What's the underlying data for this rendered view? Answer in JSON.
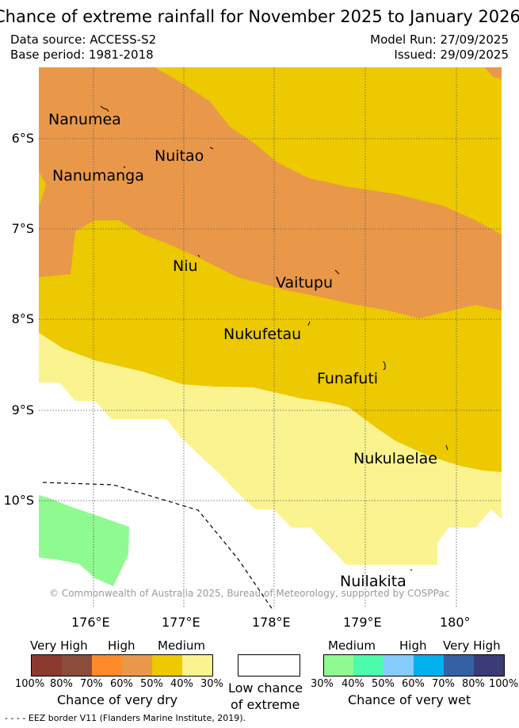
{
  "title": "Chance of extreme rainfall for November 2025 to January 2026",
  "meta": {
    "data_source": "Data source: ACCESS-S2",
    "base_period": "Base period: 1981-2018",
    "model_run": "Model Run: 27/09/2025",
    "issued": "Issued: 29/09/2025"
  },
  "axes": {
    "lat_ticks": [
      "6°S",
      "7°S",
      "8°S",
      "9°S",
      "10°S"
    ],
    "lon_ticks": [
      "176°E",
      "177°E",
      "178°E",
      "179°E",
      "180°"
    ]
  },
  "places": [
    "Nanumea",
    "Nuitao",
    "Nanumanga",
    "Niu",
    "Vaitupu",
    "Nukufetau",
    "Funafuti",
    "Nukulaelae",
    "Nuilakita"
  ],
  "copyright": "© Commonwealth of Australia 2025, Bureau of Meteorology, supported by COSPPac",
  "legend": {
    "dry_headers": [
      "Very High",
      "High",
      "Medium"
    ],
    "dry_pcts": [
      "100%",
      "80%",
      "70%",
      "60%",
      "50%",
      "40%",
      "30%"
    ],
    "dry_title": "Chance of very dry",
    "low_title_1": "Low chance",
    "low_title_2": "of extreme",
    "wet_headers": [
      "Medium",
      "High",
      "Very High"
    ],
    "wet_pcts": [
      "30%",
      "40%",
      "50%",
      "60%",
      "70%",
      "80%",
      "100%"
    ],
    "wet_title": "Chance of very wet",
    "dry_colors": [
      "#8b3a2f",
      "#8b4c3a",
      "#ff8a2a",
      "#e9984a",
      "#ecc900",
      "#fbf38f"
    ],
    "low_color": "#ffffff",
    "wet_colors": [
      "#8ffa90",
      "#4dfbad",
      "#85cbfb",
      "#00b1ee",
      "#3561a4",
      "#3b3b78"
    ]
  },
  "eez_note": "- -  - -  EEZ border V11 (Flanders Marine Institute, 2019)."
}
